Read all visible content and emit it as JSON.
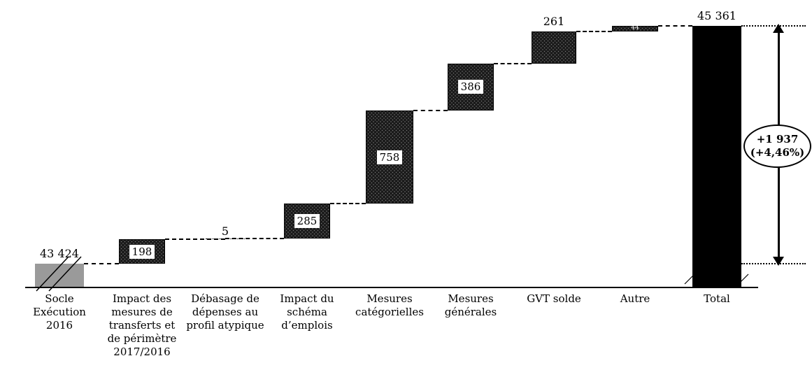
{
  "chart_data": {
    "type": "bar",
    "subtype": "waterfall",
    "title": "",
    "xlabel": "",
    "ylabel": "",
    "ylim": [
      43424,
      45361
    ],
    "grid": false,
    "legend": "none",
    "base_value": 43424,
    "total_value": 45361,
    "delta_label": {
      "line1": "+1 937",
      "line2": "(+4,46%)"
    },
    "bars": [
      {
        "name": "socle-execution-2016",
        "category": "Socle\nExécution 2016",
        "value": 43424,
        "display": "43 424",
        "kind": "base",
        "label_pos": "above"
      },
      {
        "name": "transferts-perimetre",
        "category": "Impact des\nmesures de\ntransferts et\nde périmètre\n2017/2016",
        "value": 198,
        "display": "198",
        "kind": "delta",
        "label_pos": "inside"
      },
      {
        "name": "debasage-depenses",
        "category": "Débasage de\ndépenses au\nprofil atypique",
        "value": 5,
        "display": "5",
        "kind": "line",
        "label_pos": "above"
      },
      {
        "name": "schema-emplois",
        "category": "Impact du\nschéma\nd’emplois",
        "value": 285,
        "display": "285",
        "kind": "delta",
        "label_pos": "inside"
      },
      {
        "name": "mesures-categorielles",
        "category": "Mesures\ncatégorielles",
        "value": 758,
        "display": "758",
        "kind": "delta",
        "label_pos": "inside"
      },
      {
        "name": "mesures-generales",
        "category": "Mesures\ngénérales",
        "value": 386,
        "display": "386",
        "kind": "delta",
        "label_pos": "inside"
      },
      {
        "name": "gvt-solde",
        "category": "GVT solde",
        "value": 261,
        "display": "261",
        "kind": "delta",
        "label_pos": "above"
      },
      {
        "name": "autre",
        "category": "Autre",
        "value": 44,
        "display": "44",
        "kind": "delta",
        "label_pos": "inside-tiny"
      },
      {
        "name": "total",
        "category": "Total",
        "value": 45361,
        "display": "45 361",
        "kind": "total",
        "label_pos": "above"
      }
    ],
    "colors": {
      "base_bar": "#9a9a9a",
      "delta_bar": "#1a1a1a",
      "total_bar": "#000000",
      "text": "#000000"
    }
  }
}
